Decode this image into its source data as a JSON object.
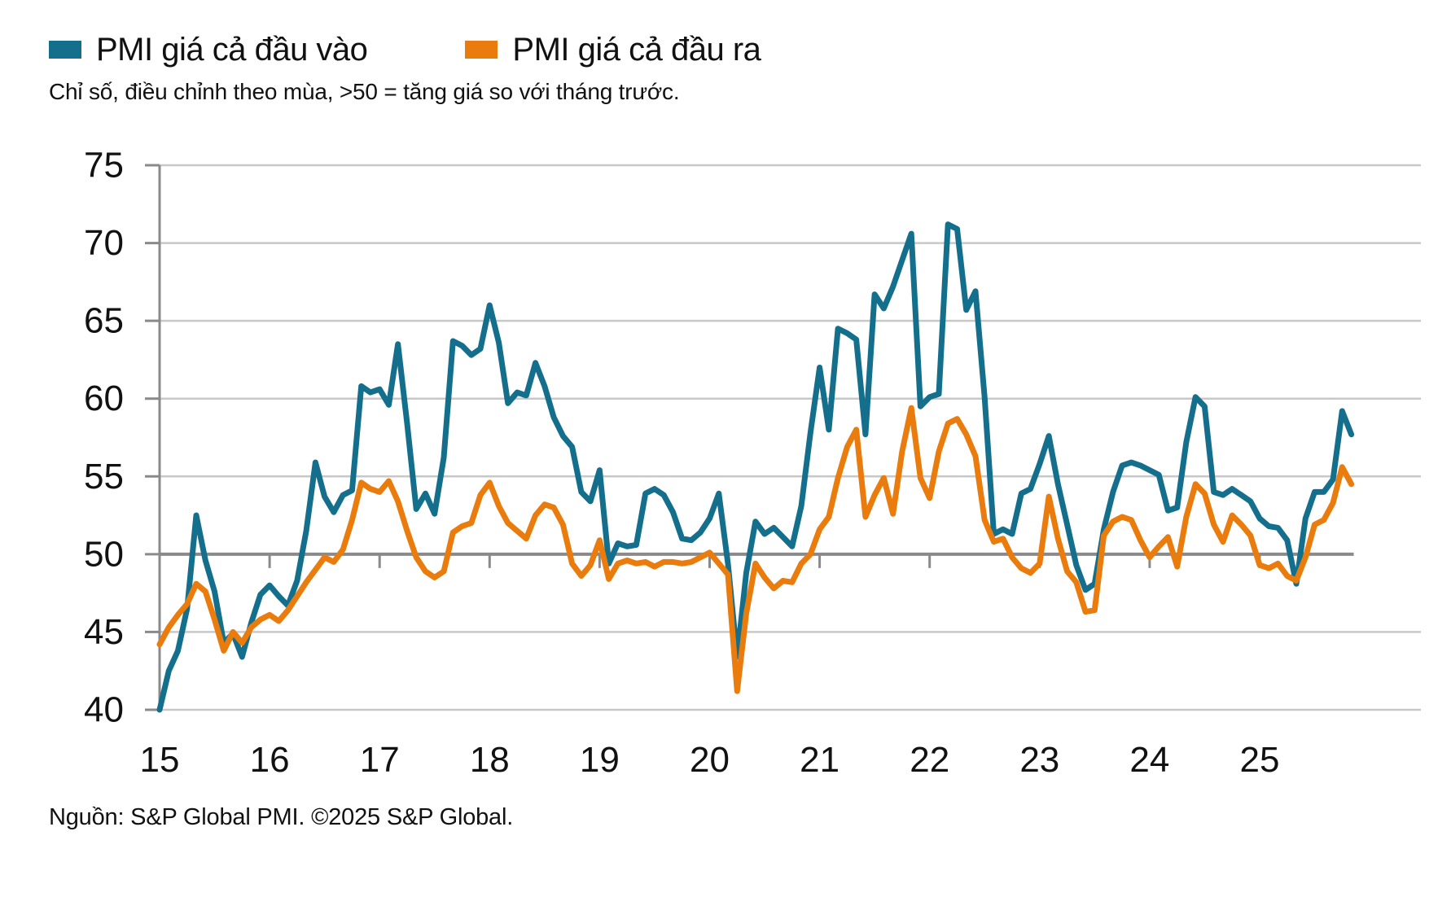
{
  "legend": {
    "input_label": "PMI giá cả đầu vào",
    "output_label": "PMI giá cả đầu ra"
  },
  "subtitle": "Chỉ số, điều chỉnh theo mùa, >50 = tăng giá so với tháng trước.",
  "source": "Nguồn: S&P Global PMI. ©2025 S&P Global.",
  "colors": {
    "input_line": "#146f8d",
    "output_line": "#e97c0d",
    "grid_light": "#c8c8c8",
    "grid_dark": "#8a8a8a",
    "text": "#111111",
    "background": "#ffffff"
  },
  "chart_data": {
    "type": "line",
    "title": "",
    "xlabel": "",
    "ylabel": "",
    "x_start": "2015-01",
    "x_end": "2025-11",
    "frequency": "monthly",
    "x_tick_labels": [
      "15",
      "16",
      "17",
      "18",
      "19",
      "20",
      "21",
      "22",
      "23",
      "24",
      "25"
    ],
    "ylim": [
      40,
      75
    ],
    "yticks": [
      40,
      45,
      50,
      55,
      60,
      65,
      70,
      75
    ],
    "baseline": 50,
    "grid": "horizontal",
    "legend_position": "top-left",
    "series": [
      {
        "name": "PMI giá cả đầu vào",
        "color": "#146f8d",
        "values": [
          40.0,
          42.5,
          43.8,
          46.5,
          52.5,
          49.6,
          47.6,
          44.3,
          44.9,
          43.4,
          45.6,
          47.4,
          48.0,
          47.3,
          46.7,
          48.3,
          51.5,
          55.9,
          53.7,
          52.7,
          53.8,
          54.1,
          60.8,
          60.4,
          60.6,
          59.6,
          63.5,
          58.4,
          52.9,
          53.9,
          52.6,
          56.2,
          63.7,
          63.4,
          62.8,
          63.2,
          66.0,
          63.6,
          59.7,
          60.4,
          60.2,
          62.3,
          60.8,
          58.8,
          57.6,
          56.9,
          54.0,
          53.4,
          55.4,
          49.4,
          50.7,
          50.5,
          50.6,
          53.9,
          54.2,
          53.8,
          52.7,
          51.0,
          50.9,
          51.4,
          52.3,
          53.9,
          49.4,
          43.4,
          48.8,
          52.1,
          51.3,
          51.7,
          51.1,
          50.5,
          53.1,
          57.8,
          62.0,
          58.0,
          64.5,
          64.2,
          63.8,
          57.7,
          66.7,
          65.8,
          67.2,
          68.9,
          70.6,
          59.5,
          60.1,
          60.3,
          71.2,
          70.9,
          65.7,
          66.9,
          60.1,
          51.3,
          51.6,
          51.3,
          53.9,
          54.2,
          55.8,
          57.6,
          54.5,
          51.9,
          49.3,
          47.7,
          48.1,
          51.6,
          54.0,
          55.7,
          55.9,
          55.7,
          55.4,
          55.1,
          52.8,
          53.0,
          57.2,
          60.1,
          59.5,
          54.0,
          53.8,
          54.2,
          53.8,
          53.4,
          52.3,
          51.8,
          51.7,
          50.9,
          48.1,
          52.3,
          54.0,
          54.0,
          54.8,
          59.2,
          57.7
        ]
      },
      {
        "name": "PMI giá cả đầu ra",
        "color": "#e97c0d",
        "values": [
          44.2,
          45.3,
          46.1,
          46.8,
          48.1,
          47.6,
          45.8,
          43.8,
          45.0,
          44.3,
          45.3,
          45.8,
          46.1,
          45.7,
          46.4,
          47.3,
          48.2,
          49.0,
          49.8,
          49.5,
          50.3,
          52.2,
          54.6,
          54.2,
          54.0,
          54.7,
          53.4,
          51.5,
          49.8,
          48.9,
          48.5,
          48.9,
          51.4,
          51.8,
          52.0,
          53.8,
          54.6,
          53.1,
          52.0,
          51.5,
          51.0,
          52.5,
          53.2,
          53.0,
          51.9,
          49.4,
          48.6,
          49.3,
          50.9,
          48.4,
          49.4,
          49.6,
          49.4,
          49.5,
          49.2,
          49.5,
          49.5,
          49.4,
          49.5,
          49.8,
          50.1,
          49.4,
          48.7,
          41.2,
          46.2,
          49.4,
          48.5,
          47.8,
          48.3,
          48.2,
          49.4,
          50.0,
          51.6,
          52.4,
          54.9,
          56.9,
          58.0,
          52.4,
          53.8,
          54.9,
          52.6,
          56.6,
          59.4,
          54.9,
          53.6,
          56.6,
          58.4,
          58.7,
          57.7,
          56.3,
          52.2,
          50.8,
          51.0,
          49.8,
          49.1,
          48.8,
          49.4,
          53.7,
          51.0,
          48.9,
          48.2,
          46.3,
          46.4,
          51.2,
          52.1,
          52.4,
          52.2,
          50.9,
          49.8,
          50.5,
          51.1,
          49.2,
          52.4,
          54.5,
          53.9,
          51.9,
          50.8,
          52.5,
          51.9,
          51.2,
          49.3,
          49.1,
          49.4,
          48.6,
          48.3,
          49.8,
          51.9,
          52.2,
          53.3,
          55.6,
          54.5
        ]
      }
    ]
  }
}
